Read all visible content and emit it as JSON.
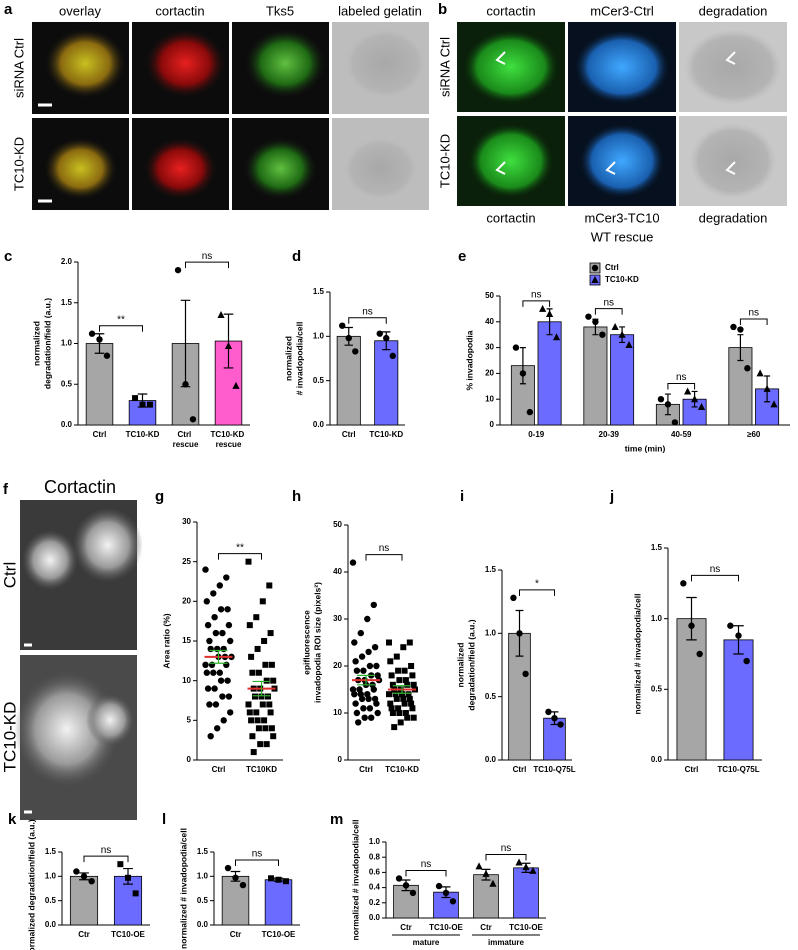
{
  "panel_a": {
    "label": "a",
    "columns": [
      "overlay",
      "cortactin",
      "Tks5",
      "labeled gelatin"
    ],
    "rows": [
      "siRNA Ctrl",
      "TC10-KD"
    ]
  },
  "panel_b": {
    "label": "b",
    "columns_top": [
      "cortactin",
      "mCer3-Ctrl",
      "degradation"
    ],
    "columns_bottom": [
      "cortactin",
      "mCer3-TC10",
      "degradation"
    ],
    "rescue_note": "WT rescue",
    "rows": [
      "siRNA Ctrl",
      "TC10-KD"
    ]
  },
  "panel_f": {
    "label": "f",
    "title": "Cortactin",
    "rows": [
      "Ctrl",
      "TC10-KD"
    ]
  },
  "chart_data": [
    {
      "type": "bar",
      "label": "c",
      "ylabel": [
        "normalized",
        "degradation/field (a.u.)"
      ],
      "categories": [
        "Ctrl",
        "TC10-KD",
        "Ctrl rescue",
        "TC10-KD rescue"
      ],
      "values": [
        1.0,
        0.3,
        1.0,
        1.03
      ],
      "errors": [
        0.12,
        0.08,
        0.53,
        0.33
      ],
      "points": [
        [
          1.12,
          1.05,
          0.85
        ],
        [
          0.33,
          0.25,
          0.25
        ],
        [
          1.9,
          0.5,
          0.07
        ],
        [
          1.35,
          0.97,
          0.48
        ]
      ],
      "markers": [
        "circle",
        "square",
        "circle",
        "triangle"
      ],
      "colors": [
        "#a6a6a6",
        "#6b6bff",
        "#a6a6a6",
        "#ff5ccd"
      ],
      "ylim": [
        0,
        2
      ],
      "yticks": [
        {
          "value": 0,
          "label": "0.0"
        },
        0.5,
        {
          "value": 1,
          "label": "1.0"
        },
        1.5,
        {
          "value": 2,
          "label": "2.0"
        }
      ],
      "significance": [
        "**",
        "ns"
      ]
    },
    {
      "type": "bar",
      "label": "d",
      "ylabel": [
        "normalized",
        "# invadopodia/cell"
      ],
      "categories": [
        "Ctrl",
        "TC10-KD"
      ],
      "values": [
        1.0,
        0.95
      ],
      "errors": [
        0.1,
        0.1
      ],
      "points": [
        [
          1.12,
          0.98,
          0.83
        ],
        [
          1.03,
          0.98,
          0.78
        ]
      ],
      "markers": [
        "circle",
        "circle"
      ],
      "colors": [
        "#a6a6a6",
        "#6b6bff"
      ],
      "ylim": [
        0,
        1.5
      ],
      "yticks": [
        {
          "value": 0,
          "label": "0.0"
        },
        0.5,
        {
          "value": 1,
          "label": "1.0"
        },
        1.5
      ],
      "significance": [
        "ns"
      ]
    },
    {
      "type": "bar",
      "label": "e",
      "ylabel": [
        "% invadopodia"
      ],
      "xlabel": "time (min)",
      "categories": [
        "0-19",
        "20-39",
        "40-59",
        "≥60"
      ],
      "series": [
        {
          "name": "Ctrl",
          "color": "#a6a6a6",
          "marker": "circle",
          "values": [
            23,
            38,
            8,
            30
          ],
          "errors": [
            7,
            3,
            4,
            5
          ],
          "points": [
            [
              30,
              20,
              5
            ],
            [
              42,
              40,
              35
            ],
            [
              10,
              8,
              1
            ],
            [
              38,
              37,
              22
            ]
          ]
        },
        {
          "name": "TC10-KD",
          "color": "#6b6bff",
          "marker": "triangle",
          "values": [
            40,
            35,
            10,
            14
          ],
          "errors": [
            5,
            3,
            3,
            5
          ],
          "points": [
            [
              45,
              43,
              34
            ],
            [
              38,
              35,
              31
            ],
            [
              13,
              10,
              7
            ],
            [
              20,
              14,
              8
            ]
          ]
        }
      ],
      "ylim": [
        0,
        50
      ],
      "yticks": [
        0,
        10,
        20,
        30,
        40,
        50
      ],
      "significance": [
        "ns",
        "ns",
        "ns",
        "ns"
      ]
    },
    {
      "type": "dot",
      "label": "g",
      "ylabel": [
        "Area ratio (%)"
      ],
      "categories": [
        "Ctrl",
        "TC10KD"
      ],
      "points": [
        [
          24,
          23,
          22,
          21,
          20,
          19,
          19,
          18,
          17,
          17,
          16,
          16,
          15,
          15,
          14,
          14,
          14,
          13,
          13,
          13,
          12,
          12,
          12,
          11,
          11,
          11,
          10,
          10,
          9,
          9,
          8,
          8,
          7,
          7,
          6,
          5,
          4,
          3
        ],
        [
          25,
          22,
          20,
          18,
          17,
          16,
          15,
          14,
          13,
          12,
          12,
          11,
          11,
          10,
          10,
          9,
          9,
          9,
          8,
          8,
          8,
          7,
          7,
          7,
          6,
          6,
          6,
          5,
          5,
          5,
          4,
          4,
          4,
          3,
          3,
          2,
          2,
          1
        ]
      ],
      "markers": [
        "circle",
        "square"
      ],
      "values": [
        13,
        9
      ],
      "errors": [
        0.8,
        0.9
      ],
      "mean_color": "#e03030",
      "error_color": "#30b030",
      "ylim": [
        0,
        30
      ],
      "yticks": [
        0,
        5,
        10,
        15,
        20,
        25,
        30
      ],
      "significance": [
        "**"
      ]
    },
    {
      "type": "dot",
      "label": "h",
      "ylabel": [
        "epifluorescence",
        "invadopodia ROI size (pixels²)"
      ],
      "categories": [
        "Ctrl",
        "TC10-KD"
      ],
      "points": [
        [
          42,
          33,
          30,
          27,
          25,
          24,
          23,
          22,
          21,
          20,
          20,
          19,
          19,
          18,
          18,
          17,
          17,
          17,
          16,
          16,
          15,
          15,
          15,
          14,
          14,
          14,
          13,
          13,
          13,
          12,
          12,
          11,
          11,
          10,
          10,
          9,
          9,
          8
        ],
        [
          25,
          25,
          24,
          22,
          21,
          20,
          19,
          19,
          18,
          18,
          17,
          17,
          16,
          16,
          16,
          15,
          15,
          15,
          14,
          14,
          14,
          14,
          13,
          13,
          13,
          12,
          12,
          12,
          11,
          11,
          11,
          10,
          10,
          10,
          9,
          9,
          8,
          7
        ]
      ],
      "markers": [
        "circle",
        "square"
      ],
      "values": [
        17,
        15
      ],
      "errors": [
        1,
        0.8
      ],
      "mean_color": "#e03030",
      "error_color": "#30b030",
      "ylim": [
        0,
        50
      ],
      "yticks": [
        0,
        10,
        20,
        30,
        40,
        50
      ],
      "significance": [
        "ns"
      ]
    },
    {
      "type": "bar",
      "label": "i",
      "ylabel": [
        "normalized",
        "degradation/field (a.u.)"
      ],
      "categories": [
        "Ctrl",
        "TC10-Q75L"
      ],
      "values": [
        1.0,
        0.33
      ],
      "errors": [
        0.18,
        0.05
      ],
      "points": [
        [
          1.28,
          1.0,
          0.68
        ],
        [
          0.38,
          0.33,
          0.28
        ]
      ],
      "markers": [
        "circle",
        "circle"
      ],
      "colors": [
        "#a6a6a6",
        "#6b6bff"
      ],
      "ylim": [
        0,
        1.5
      ],
      "yticks": [
        {
          "value": 0,
          "label": "0.0"
        },
        0.5,
        {
          "value": 1,
          "label": "1.0"
        },
        1.5
      ],
      "significance": [
        "*"
      ]
    },
    {
      "type": "bar",
      "label": "j",
      "ylabel": [
        "normalized # invadopodia/cell"
      ],
      "categories": [
        "Ctrl",
        "TC10-Q75L"
      ],
      "values": [
        1.0,
        0.85
      ],
      "errors": [
        0.15,
        0.1
      ],
      "points": [
        [
          1.25,
          0.95,
          0.75
        ],
        [
          0.95,
          0.88,
          0.7
        ]
      ],
      "markers": [
        "circle",
        "circle"
      ],
      "colors": [
        "#a6a6a6",
        "#6b6bff"
      ],
      "ylim": [
        0,
        1.5
      ],
      "yticks": [
        {
          "value": 0,
          "label": "0.0"
        },
        0.5,
        {
          "value": 1,
          "label": "1.0"
        },
        1.5
      ],
      "significance": [
        "ns"
      ]
    },
    {
      "type": "bar",
      "label": "k",
      "ylabel": [
        "normalized degradation/field (a.u.)"
      ],
      "categories": [
        "Ctr",
        "TC10-OE"
      ],
      "values": [
        1.0,
        1.0
      ],
      "errors": [
        0.07,
        0.16
      ],
      "points": [
        [
          1.1,
          1.0,
          0.9
        ],
        [
          1.25,
          0.97,
          0.65
        ]
      ],
      "markers": [
        "circle",
        "square"
      ],
      "colors": [
        "#a6a6a6",
        "#6b6bff"
      ],
      "ylim": [
        0,
        1.5
      ],
      "yticks": [
        {
          "value": 0,
          "label": "0.0"
        },
        0.5,
        {
          "value": 1,
          "label": "1.0"
        },
        1.5
      ],
      "significance": [
        "ns"
      ]
    },
    {
      "type": "bar",
      "label": "l",
      "ylabel": [
        "normalized # invadopodia/cell"
      ],
      "categories": [
        "Ctr",
        "TC10-OE"
      ],
      "values": [
        1.0,
        0.93
      ],
      "errors": [
        0.1,
        0.03
      ],
      "points": [
        [
          1.17,
          0.97,
          0.82
        ],
        [
          0.96,
          0.93,
          0.9
        ]
      ],
      "markers": [
        "circle",
        "square"
      ],
      "colors": [
        "#a6a6a6",
        "#6b6bff"
      ],
      "ylim": [
        0,
        1.5
      ],
      "yticks": [
        {
          "value": 0,
          "label": "0.0"
        },
        0.5,
        {
          "value": 1,
          "label": "1.0"
        },
        1.5
      ],
      "significance": [
        "ns"
      ]
    },
    {
      "type": "bar",
      "label": "m",
      "ylabel": [
        "normalized # invadopodia/cell"
      ],
      "categories": [
        "Ctr",
        "TC10-OE",
        "Ctr",
        "TC10-OE"
      ],
      "group_labels": [
        "mature",
        "immature"
      ],
      "values": [
        0.43,
        0.34,
        0.57,
        0.66
      ],
      "errors": [
        0.07,
        0.07,
        0.07,
        0.06
      ],
      "points": [
        [
          0.52,
          0.43,
          0.33
        ],
        [
          0.42,
          0.33,
          0.22
        ],
        [
          0.68,
          0.58,
          0.45
        ],
        [
          0.73,
          0.67,
          0.62
        ]
      ],
      "markers": [
        "circle",
        "circle",
        "triangle",
        "triangle"
      ],
      "colors": [
        "#a6a6a6",
        "#6b6bff",
        "#a6a6a6",
        "#6b6bff"
      ],
      "ylim": [
        0,
        1
      ],
      "yticks": [
        {
          "value": 0,
          "label": "0.0"
        },
        0.2,
        0.4,
        0.6,
        0.8,
        {
          "value": 1,
          "label": "1.0"
        }
      ],
      "significance": [
        "ns",
        "ns"
      ]
    }
  ]
}
